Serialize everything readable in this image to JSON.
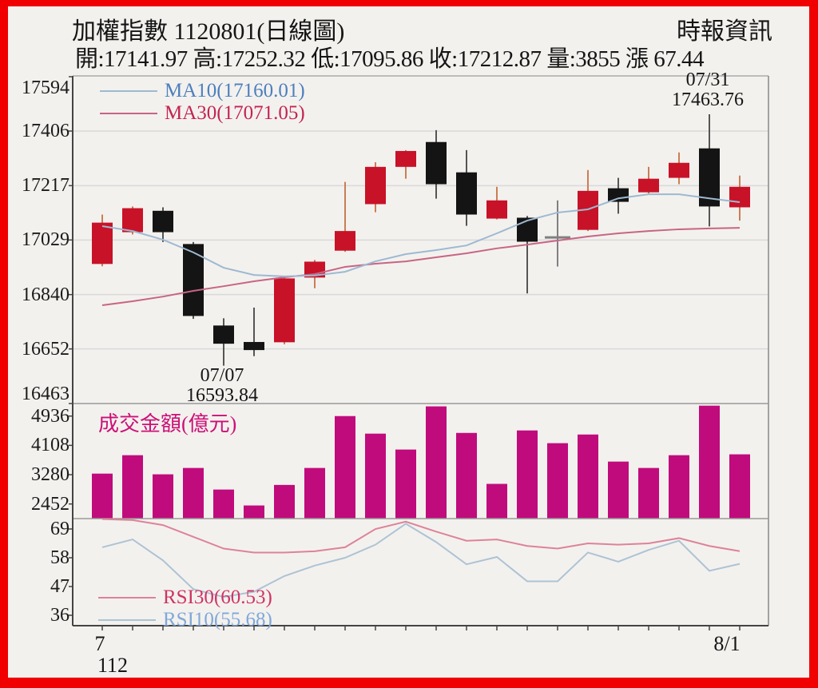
{
  "header": {
    "title": "加權指數 1120801(日線圖)",
    "brand": "時報資訊",
    "stats": "開:17141.97 高:17252.32 低:17095.86 收:17212.87 量:3855 漲 67.44"
  },
  "legends": {
    "ma10": "MA10(17160.01)",
    "ma30": "MA30(17071.05)",
    "volume": "成交金額(億元)",
    "rsi30": "RSI30(60.53)",
    "rsi10": "RSI10(55.68)"
  },
  "annotations": {
    "high": {
      "date": "07/31",
      "value": "17463.76"
    },
    "low": {
      "date": "07/07",
      "value": "16593.84"
    }
  },
  "x_axis": {
    "start_label": "7",
    "start_year": "112",
    "end_label": "8/1"
  },
  "colors": {
    "border": "#f00000",
    "background": "#f3f1ee",
    "up_candle": "#c81228",
    "down_candle": "#141414",
    "doji_candle": "#808080",
    "up_wick": "#c97e54",
    "down_wick": "#555555",
    "ma10_line": "#9db9d1",
    "ma30_line": "#c76585",
    "ma10_label": "#4d7fbe",
    "ma30_label": "#c42452",
    "volume_bar": "#c00b7c",
    "volume_label": "#cc1177",
    "rsi30_line": "#dd8399",
    "rsi10_line": "#adc3d4",
    "rsi30_label": "#cf3366",
    "rsi10_label": "#7fa8d9",
    "gridline": "#d9d9d9",
    "axis": "#444444"
  },
  "chart_data": {
    "type": "candlestick",
    "title": "加權指數 1120801(日線圖)",
    "panes": {
      "main": {
        "yticks": [
          17594,
          17406,
          17217,
          17029,
          16840,
          16652,
          16463
        ],
        "grid": true
      },
      "volume": {
        "yticks": [
          4936,
          4108,
          3280,
          2452
        ],
        "grid": false
      },
      "rsi": {
        "yticks": [
          69,
          58,
          47,
          36
        ],
        "grid": false
      }
    },
    "candles": [
      [
        16946,
        17117,
        16938,
        17089,
        "up"
      ],
      [
        17056,
        17145,
        17048,
        17139,
        "up"
      ],
      [
        17130,
        17142,
        17022,
        17056,
        "dn"
      ],
      [
        17015,
        17022,
        16756,
        16766,
        "dn"
      ],
      [
        16733,
        16758,
        16594,
        16670,
        "dn"
      ],
      [
        16676,
        16795,
        16627,
        16648,
        "dn"
      ],
      [
        16675,
        16902,
        16668,
        16896,
        "up"
      ],
      [
        16899,
        16960,
        16862,
        16954,
        "up"
      ],
      [
        16992,
        17230,
        16988,
        17060,
        "up"
      ],
      [
        17153,
        17298,
        17125,
        17282,
        "up"
      ],
      [
        17282,
        17340,
        17241,
        17337,
        "up"
      ],
      [
        17368,
        17409,
        17172,
        17222,
        "dn"
      ],
      [
        17263,
        17340,
        17078,
        17117,
        "dn"
      ],
      [
        17103,
        17213,
        17100,
        17166,
        "up"
      ],
      [
        17106,
        17112,
        16844,
        17023,
        "dn"
      ],
      [
        17042,
        17166,
        16937,
        17038,
        "doji"
      ],
      [
        17064,
        17271,
        17060,
        17199,
        "up"
      ],
      [
        17208,
        17244,
        17120,
        17161,
        "dn"
      ],
      [
        17194,
        17282,
        17190,
        17241,
        "up"
      ],
      [
        17244,
        17332,
        17222,
        17296,
        "up"
      ],
      [
        17346,
        17464,
        17076,
        17145,
        "dn"
      ],
      [
        17142,
        17252,
        17096,
        17213,
        "up"
      ]
    ],
    "ma10": [
      17077,
      17060,
      17030,
      16986,
      16933,
      16908,
      16903,
      16906,
      16919,
      16955,
      16980,
      16994,
      17010,
      17052,
      17096,
      17124,
      17135,
      17173,
      17187,
      17187,
      17173,
      17160
    ],
    "ma30": [
      16803,
      16817,
      16833,
      16853,
      16869,
      16886,
      16900,
      16911,
      16936,
      16947,
      16955,
      16969,
      16983,
      17000,
      17013,
      17027,
      17041,
      17052,
      17060,
      17066,
      17069,
      17071
    ],
    "volume": [
      3310,
      3830,
      3290,
      3470,
      2860,
      2410,
      2990,
      3470,
      4936,
      4440,
      3990,
      5210,
      4460,
      3020,
      4530,
      4170,
      4415,
      3650,
      3470,
      3830,
      5230,
      3855
    ],
    "rsi30": [
      72.8,
      72.4,
      70.5,
      66,
      61.5,
      60,
      60,
      60.5,
      62,
      69,
      71.8,
      68,
      64.5,
      65,
      62.5,
      61.5,
      63.5,
      63,
      63.5,
      65.5,
      62.5,
      60.53
    ],
    "rsi10": [
      62,
      65,
      57,
      46,
      43,
      45,
      51,
      55,
      58,
      63,
      71,
      64,
      55.5,
      58.3,
      49,
      49,
      60,
      56.5,
      61,
      64.5,
      53,
      55.68
    ],
    "high_point_index": 20,
    "low_point_index": 4
  }
}
